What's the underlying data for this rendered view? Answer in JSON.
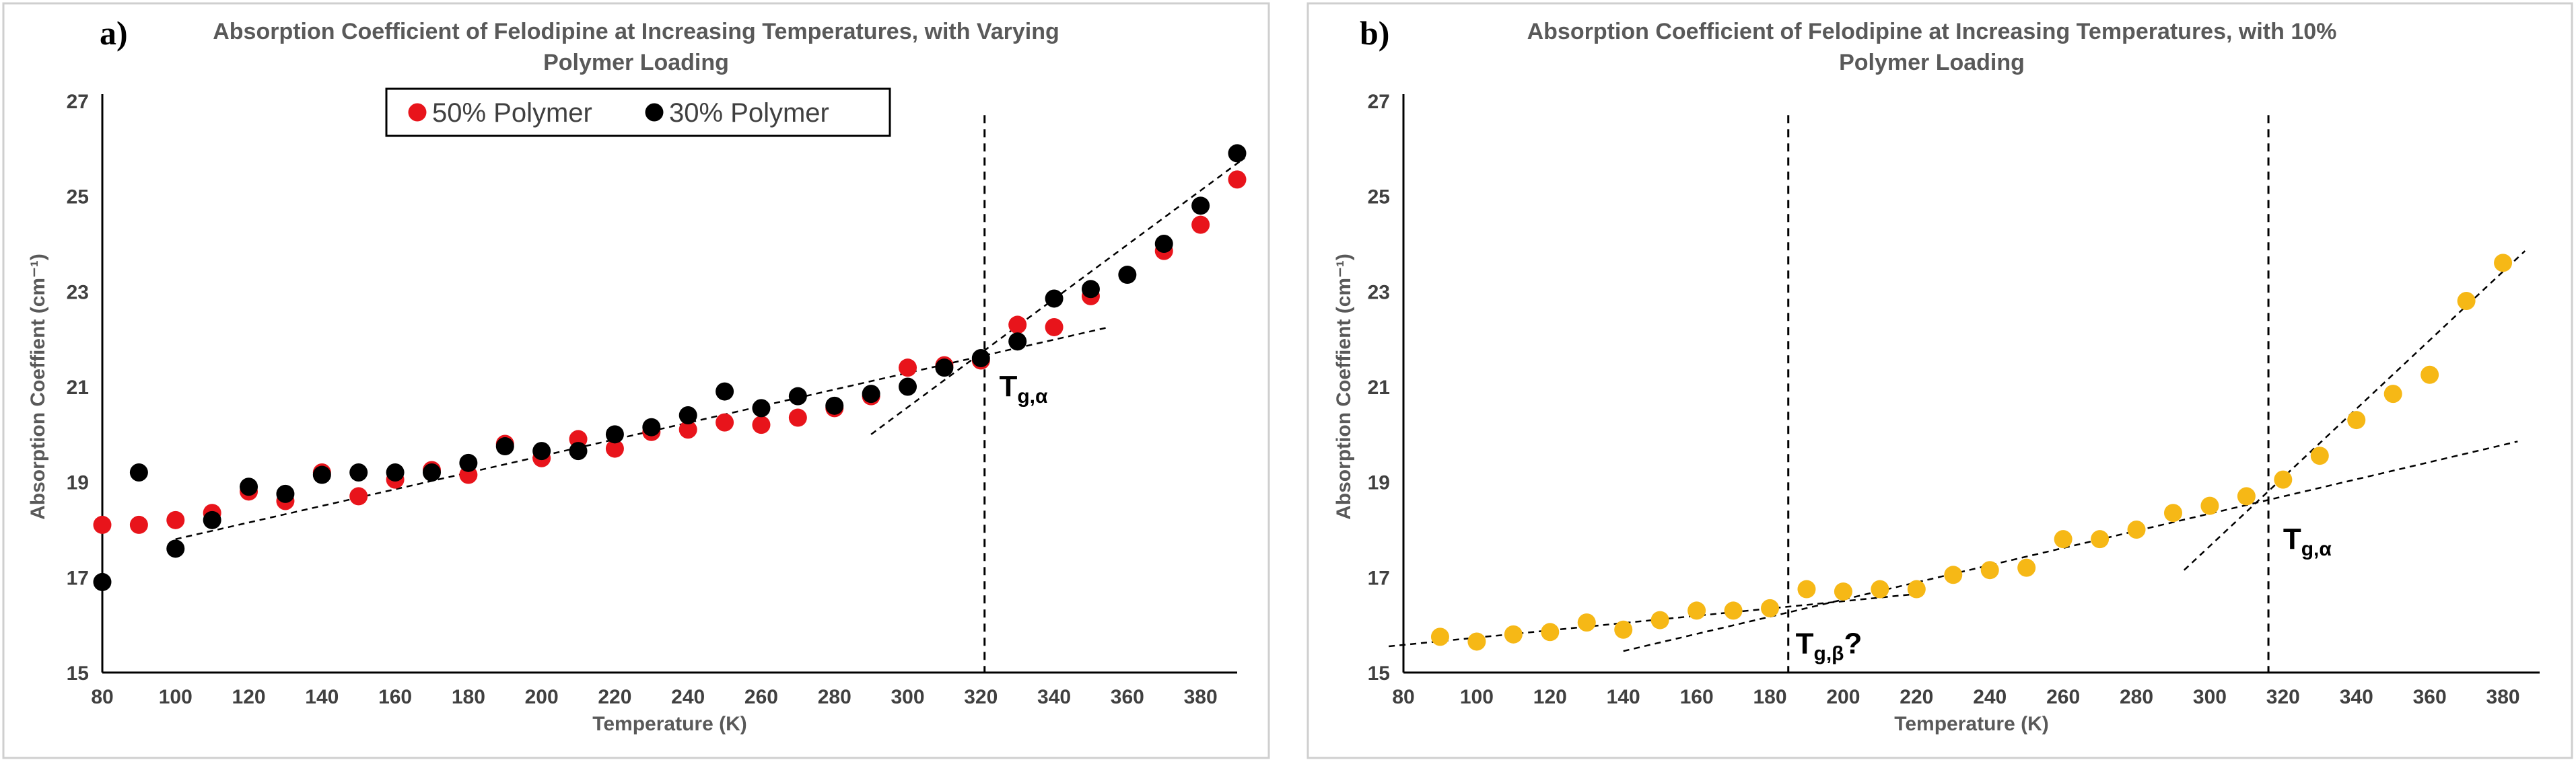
{
  "chart_data": [
    {
      "panel_label": "a)",
      "type": "scatter",
      "title": "Absorption Coefficient of Felodipine at Increasing Temperatures, with Varying Polymer Loading",
      "title_lines": [
        "Absorption Coefficient of Felodipine at Increasing Temperatures, with Varying",
        "Polymer Loading"
      ],
      "xlabel": "Temperature (K)",
      "ylabel": "Absorption Coeffient (cm⁻¹)",
      "xlim": [
        80,
        390
      ],
      "ylim": [
        15,
        27
      ],
      "x_ticks": [
        80,
        100,
        120,
        140,
        160,
        180,
        200,
        220,
        240,
        260,
        280,
        300,
        320,
        340,
        360,
        380
      ],
      "y_ticks": [
        15,
        17,
        19,
        21,
        23,
        25,
        27
      ],
      "grid": false,
      "legend": {
        "position": "top-center",
        "entries": [
          "50% Polymer",
          "30% Polymer"
        ]
      },
      "series": [
        {
          "name": "50% Polymer",
          "color": "#e8141b",
          "x": [
            80,
            90,
            100,
            110,
            120,
            130,
            140,
            150,
            160,
            170,
            180,
            190,
            200,
            210,
            220,
            230,
            240,
            250,
            260,
            270,
            280,
            290,
            300,
            310,
            320,
            330,
            340,
            350,
            370,
            380,
            390
          ],
          "y": [
            18.1,
            18.1,
            18.2,
            18.35,
            18.8,
            18.6,
            19.2,
            18.7,
            19.05,
            19.25,
            19.15,
            19.8,
            19.5,
            19.9,
            19.7,
            20.05,
            20.1,
            20.25,
            20.2,
            20.35,
            20.55,
            20.8,
            21.4,
            21.45,
            21.55,
            22.3,
            22.25,
            22.9,
            23.85,
            24.4,
            25.35
          ]
        },
        {
          "name": "30% Polymer",
          "color": "#000000",
          "x": [
            80,
            90,
            100,
            110,
            120,
            130,
            140,
            150,
            160,
            170,
            180,
            190,
            200,
            210,
            220,
            230,
            240,
            250,
            260,
            270,
            280,
            290,
            300,
            310,
            320,
            330,
            340,
            350,
            360,
            370,
            380,
            390
          ],
          "y": [
            16.9,
            19.2,
            17.6,
            18.2,
            18.9,
            18.75,
            19.15,
            19.2,
            19.2,
            19.2,
            19.4,
            19.75,
            19.65,
            19.65,
            20.0,
            20.15,
            20.4,
            20.9,
            20.55,
            20.8,
            20.6,
            20.85,
            21.0,
            21.4,
            21.6,
            21.95,
            22.85,
            23.05,
            23.35,
            24.0,
            24.8,
            25.9
          ]
        }
      ],
      "trendlines": [
        {
          "x": [
            100,
            355
          ],
          "y": [
            17.8,
            22.25
          ]
        },
        {
          "x": [
            290,
            392
          ],
          "y": [
            20.0,
            25.8
          ]
        }
      ],
      "vlines": [
        {
          "x": 321,
          "ylim": [
            15,
            26.7
          ]
        }
      ],
      "annotations": [
        {
          "label": "T",
          "sub": "g,α",
          "x": 325,
          "y": 20.8
        }
      ]
    },
    {
      "panel_label": "b)",
      "type": "scatter",
      "title": "Absorption Coefficient of Felodipine at Increasing Temperatures, with 10% Polymer Loading",
      "title_lines": [
        "Absorption Coefficient of Felodipine at Increasing Temperatures, with 10%",
        "Polymer Loading"
      ],
      "xlabel": "Temperature (K)",
      "ylabel": "Absorption Coeffient (cm⁻¹)",
      "xlim": [
        80,
        390
      ],
      "ylim": [
        15,
        27
      ],
      "x_ticks": [
        80,
        100,
        120,
        140,
        160,
        180,
        200,
        220,
        240,
        260,
        280,
        300,
        320,
        340,
        360,
        380
      ],
      "y_ticks": [
        15,
        17,
        19,
        21,
        23,
        25,
        27
      ],
      "grid": false,
      "series": [
        {
          "color": "#f6b816",
          "x": [
            90,
            100,
            110,
            120,
            130,
            140,
            150,
            160,
            170,
            180,
            190,
            200,
            210,
            220,
            230,
            240,
            250,
            260,
            270,
            280,
            290,
            300,
            310,
            320,
            330,
            340,
            350,
            360,
            370,
            380
          ],
          "y": [
            15.75,
            15.65,
            15.8,
            15.85,
            16.05,
            15.9,
            16.1,
            16.3,
            16.3,
            16.35,
            16.75,
            16.7,
            16.75,
            16.75,
            17.05,
            17.15,
            17.2,
            17.8,
            17.8,
            18.0,
            18.35,
            18.5,
            18.7,
            19.05,
            19.55,
            20.3,
            20.85,
            21.25,
            22.8,
            23.6
          ]
        }
      ],
      "trendlines": [
        {
          "x": [
            76,
            220
          ],
          "y": [
            15.55,
            16.65
          ]
        },
        {
          "x": [
            140,
            384
          ],
          "y": [
            15.45,
            19.85
          ]
        },
        {
          "x": [
            293,
            386
          ],
          "y": [
            17.15,
            23.85
          ]
        }
      ],
      "vlines": [
        {
          "x": 185,
          "ylim": [
            15,
            26.7
          ]
        },
        {
          "x": 316,
          "ylim": [
            15,
            26.7
          ]
        }
      ],
      "annotations": [
        {
          "label": "T",
          "sub": "g,β",
          "suffix": "?",
          "x": 187,
          "y": 15.4
        },
        {
          "label": "T",
          "sub": "g,α",
          "x": 320,
          "y": 17.6
        }
      ]
    }
  ]
}
